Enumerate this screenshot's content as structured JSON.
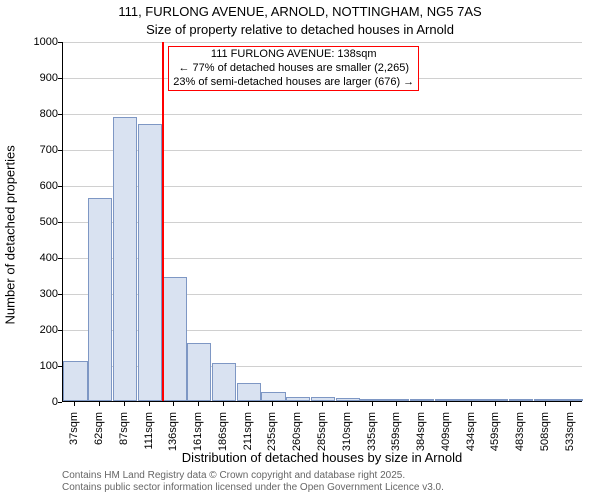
{
  "chart": {
    "type": "histogram",
    "title_line1": "111, FURLONG AVENUE, ARNOLD, NOTTINGHAM, NG5 7AS",
    "title_line2": "Size of property relative to detached houses in Arnold",
    "yaxis_label": "Number of detached properties",
    "xaxis_label": "Distribution of detached houses by size in Arnold",
    "ylim": [
      0,
      1000
    ],
    "ytick_step": 100,
    "yticks": [
      0,
      100,
      200,
      300,
      400,
      500,
      600,
      700,
      800,
      900,
      1000
    ],
    "xticks": [
      "37sqm",
      "62sqm",
      "87sqm",
      "111sqm",
      "136sqm",
      "161sqm",
      "186sqm",
      "211sqm",
      "235sqm",
      "260sqm",
      "285sqm",
      "310sqm",
      "335sqm",
      "359sqm",
      "384sqm",
      "409sqm",
      "434sqm",
      "459sqm",
      "483sqm",
      "508sqm",
      "533sqm"
    ],
    "bar_values": [
      110,
      565,
      790,
      770,
      345,
      160,
      105,
      50,
      25,
      10,
      10,
      8,
      5,
      5,
      3,
      3,
      0,
      0,
      0,
      3,
      0
    ],
    "bar_fill": "#d9e2f1",
    "bar_border": "#7e97c4",
    "background_color": "#ffffff",
    "grid_color": "#d0d0d0",
    "marker_color": "#ff0000",
    "marker_bin_index": 4,
    "annotation_line1": "111 FURLONG AVENUE: 138sqm",
    "annotation_line2": "← 77% of detached houses are smaller (2,265)",
    "annotation_line3": "23% of semi-detached houses are larger (676) →",
    "annotation_border": "#ff0000",
    "footer_line1": "Contains HM Land Registry data © Crown copyright and database right 2025.",
    "footer_line2": "Contains public sector information licensed under the Open Government Licence v3.0.",
    "title_fontsize": 13,
    "axis_label_fontsize": 13,
    "tick_fontsize": 11,
    "annotation_fontsize": 11,
    "footer_fontsize": 10
  }
}
